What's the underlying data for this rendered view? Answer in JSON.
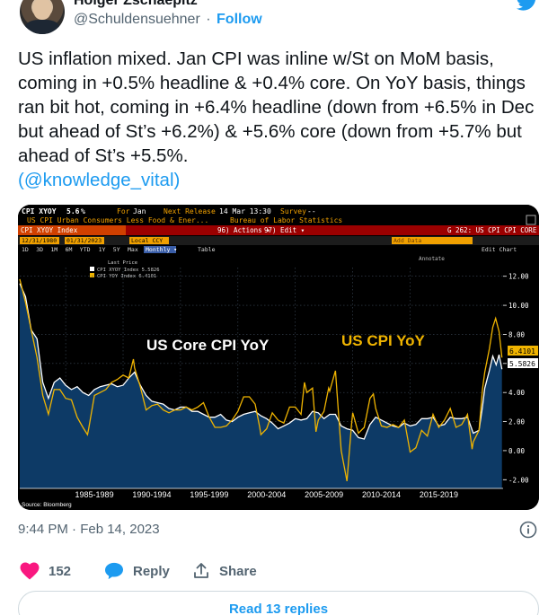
{
  "author": {
    "display_name": "Holger Zschaepitz",
    "handle": "@Schuldensuehner",
    "separator": "·",
    "follow_label": "Follow"
  },
  "tweet": {
    "text_main": "US inflation mixed. Jan CPI was inline w/St on MoM basis, coming in +0.5% headline & +0.4% core. On YoY basis, things ran bit hot, coming in +6.4% headline (down from +6.5% in Dec but ahead of St’s +6.2%) & +5.6% core (down from +5.7% but ahead of St’s +5.5%.",
    "mention_open": "(",
    "mention": "@knowledge_vital",
    "mention_close": ")"
  },
  "terminal": {
    "ticker": "CPI XYOY",
    "ticker_value": "5.6",
    "ticker_dot": "%",
    "for_label": "For",
    "for_value": "Jan",
    "next_release_label": "Next Release",
    "next_release_value": "14 Mar 13:30",
    "survey_label": "Survey",
    "survey_value": "--",
    "series_desc": "US CPI Urban Consumers Less Food & Ener...",
    "source_desc": "Bureau of Labor Statistics",
    "index_name": "CPI XYOY Index",
    "actions_label": "96) Actions ▾",
    "edit_label": "97) Edit ▾",
    "page_code": "G 262: US CPI CPI CORE",
    "date_from": "12/31/1980",
    "date_to": "01/31/2023",
    "currency": "Local CCY",
    "periods": [
      "1D",
      "3D",
      "1M",
      "6M",
      "YTD",
      "1Y",
      "5Y",
      "Max"
    ],
    "frequency": "Monthly ▾",
    "table_label": "Table",
    "add_data": "Add Data",
    "annotate": "Annotate",
    "edit_chart": "Edit Chart",
    "legend_title": "Last Price",
    "legend_items": [
      {
        "label": "CPI XYOY Index 5.5826",
        "color": "#ffffff"
      },
      {
        "label": "CPI YOY Index 6.4101",
        "color": "#f0b400"
      }
    ],
    "source": "Source: Bloomberg"
  },
  "chart_data": {
    "type": "line",
    "title": "",
    "annotations": [
      "US Core CPI YoY",
      "US CPI YoY"
    ],
    "x_tick_labels": [
      "1985-1989",
      "1990-1994",
      "1995-1999",
      "2000-2004",
      "2005-2009",
      "2010-2014",
      "2015-2019"
    ],
    "y_tick_labels": [
      "12.00",
      "10.00",
      "8.00",
      "6.00",
      "4.00",
      "2.00",
      "0.00",
      "-2.00"
    ],
    "xlim": [
      1981,
      2023.1
    ],
    "ylim": [
      -2.6,
      12.6
    ],
    "last_values": {
      "core": "5.5826",
      "headline": "6.4101"
    },
    "series": [
      {
        "name": "CPI XYOY Index",
        "color": "#ffffff",
        "fill": "#0d3a66",
        "points": [
          [
            1981,
            11.5
          ],
          [
            1981.5,
            10.6
          ],
          [
            1982,
            8.3
          ],
          [
            1982.5,
            7.7
          ],
          [
            1983,
            4.7
          ],
          [
            1983.5,
            3.6
          ],
          [
            1984,
            4.7
          ],
          [
            1984.5,
            5.0
          ],
          [
            1985,
            4.5
          ],
          [
            1985.5,
            4.2
          ],
          [
            1986,
            4.4
          ],
          [
            1986.5,
            4.0
          ],
          [
            1987,
            3.8
          ],
          [
            1987.5,
            4.2
          ],
          [
            1988,
            4.4
          ],
          [
            1988.5,
            4.5
          ],
          [
            1989,
            4.6
          ],
          [
            1989.5,
            4.4
          ],
          [
            1990,
            4.5
          ],
          [
            1990.5,
            5.0
          ],
          [
            1991,
            5.4
          ],
          [
            1991.5,
            4.5
          ],
          [
            1992,
            3.8
          ],
          [
            1992.5,
            3.4
          ],
          [
            1993,
            3.3
          ],
          [
            1993.5,
            3.2
          ],
          [
            1994,
            2.9
          ],
          [
            1994.5,
            2.8
          ],
          [
            1995,
            3.0
          ],
          [
            1995.5,
            3.0
          ],
          [
            1996,
            2.7
          ],
          [
            1996.5,
            2.7
          ],
          [
            1997,
            2.5
          ],
          [
            1997.5,
            2.3
          ],
          [
            1998,
            2.3
          ],
          [
            1998.5,
            2.5
          ],
          [
            1999,
            2.1
          ],
          [
            1999.5,
            2.0
          ],
          [
            2000,
            2.3
          ],
          [
            2000.5,
            2.5
          ],
          [
            2001,
            2.6
          ],
          [
            2001.5,
            2.7
          ],
          [
            2002,
            2.4
          ],
          [
            2002.5,
            2.2
          ],
          [
            2003,
            1.9
          ],
          [
            2003.5,
            1.5
          ],
          [
            2004,
            1.7
          ],
          [
            2004.5,
            1.9
          ],
          [
            2005,
            2.2
          ],
          [
            2005.5,
            2.1
          ],
          [
            2006,
            2.2
          ],
          [
            2006.5,
            2.7
          ],
          [
            2007,
            2.6
          ],
          [
            2007.5,
            2.2
          ],
          [
            2008,
            2.5
          ],
          [
            2008.5,
            2.5
          ],
          [
            2009,
            1.7
          ],
          [
            2009.5,
            1.5
          ],
          [
            2010,
            1.4
          ],
          [
            2010.5,
            0.9
          ],
          [
            2011,
            0.8
          ],
          [
            2011.5,
            1.8
          ],
          [
            2012,
            2.3
          ],
          [
            2012.5,
            2.1
          ],
          [
            2013,
            1.9
          ],
          [
            2013.5,
            1.7
          ],
          [
            2014,
            1.6
          ],
          [
            2014.5,
            1.9
          ],
          [
            2015,
            1.7
          ],
          [
            2015.5,
            1.8
          ],
          [
            2016,
            2.2
          ],
          [
            2016.5,
            2.2
          ],
          [
            2017,
            2.3
          ],
          [
            2017.5,
            1.7
          ],
          [
            2018,
            1.8
          ],
          [
            2018.5,
            2.3
          ],
          [
            2019,
            2.2
          ],
          [
            2019.5,
            2.2
          ],
          [
            2020,
            2.3
          ],
          [
            2020.5,
            1.2
          ],
          [
            2021,
            1.4
          ],
          [
            2021.3,
            3.0
          ],
          [
            2021.5,
            4.3
          ],
          [
            2021.9,
            5.5
          ],
          [
            2022.2,
            6.5
          ],
          [
            2022.5,
            5.9
          ],
          [
            2022.75,
            6.6
          ],
          [
            2023,
            5.6
          ]
        ]
      },
      {
        "name": "CPI YOY Index",
        "color": "#f0b400",
        "points": [
          [
            1981,
            11.8
          ],
          [
            1981.5,
            10.2
          ],
          [
            1982,
            8.3
          ],
          [
            1982.5,
            6.4
          ],
          [
            1983,
            3.8
          ],
          [
            1983.5,
            2.5
          ],
          [
            1984,
            4.2
          ],
          [
            1984.5,
            4.2
          ],
          [
            1985,
            3.6
          ],
          [
            1985.5,
            3.5
          ],
          [
            1986,
            2.3
          ],
          [
            1986.5,
            1.6
          ],
          [
            1986.9,
            1.1
          ],
          [
            1987,
            1.5
          ],
          [
            1987.5,
            3.8
          ],
          [
            1988,
            4.0
          ],
          [
            1988.5,
            4.2
          ],
          [
            1989,
            4.7
          ],
          [
            1989.5,
            4.9
          ],
          [
            1990,
            5.2
          ],
          [
            1990.5,
            5.0
          ],
          [
            1990.9,
            6.3
          ],
          [
            1991,
            5.7
          ],
          [
            1991.5,
            4.4
          ],
          [
            1992,
            2.8
          ],
          [
            1992.5,
            3.1
          ],
          [
            1993,
            3.2
          ],
          [
            1993.5,
            2.8
          ],
          [
            1994,
            2.6
          ],
          [
            1994.5,
            2.8
          ],
          [
            1995,
            2.8
          ],
          [
            1995.5,
            3.0
          ],
          [
            1996,
            2.8
          ],
          [
            1996.5,
            3.0
          ],
          [
            1997,
            3.3
          ],
          [
            1997.5,
            2.3
          ],
          [
            1998,
            1.6
          ],
          [
            1998.5,
            1.6
          ],
          [
            1999,
            1.7
          ],
          [
            1999.5,
            2.1
          ],
          [
            2000,
            2.7
          ],
          [
            2000.5,
            3.7
          ],
          [
            2001,
            3.7
          ],
          [
            2001.5,
            3.2
          ],
          [
            2001.9,
            1.6
          ],
          [
            2002,
            1.1
          ],
          [
            2002.5,
            1.5
          ],
          [
            2003,
            2.6
          ],
          [
            2003.5,
            2.1
          ],
          [
            2004,
            1.9
          ],
          [
            2004.5,
            3.0
          ],
          [
            2005,
            3.0
          ],
          [
            2005.5,
            2.5
          ],
          [
            2005.8,
            4.7
          ],
          [
            2006,
            4.0
          ],
          [
            2006.5,
            4.3
          ],
          [
            2006.8,
            1.3
          ],
          [
            2007,
            2.1
          ],
          [
            2007.5,
            2.7
          ],
          [
            2007.9,
            4.3
          ],
          [
            2008,
            4.1
          ],
          [
            2008.5,
            5.5
          ],
          [
            2008.9,
            1.1
          ],
          [
            2009,
            0.0
          ],
          [
            2009.5,
            -2.1
          ],
          [
            2009.9,
            1.8
          ],
          [
            2010,
            2.6
          ],
          [
            2010.5,
            1.2
          ],
          [
            2011,
            1.6
          ],
          [
            2011.5,
            3.6
          ],
          [
            2011.8,
            3.9
          ],
          [
            2012,
            2.9
          ],
          [
            2012.5,
            1.7
          ],
          [
            2013,
            1.6
          ],
          [
            2013.5,
            1.8
          ],
          [
            2014,
            1.6
          ],
          [
            2014.5,
            2.1
          ],
          [
            2015,
            -0.1
          ],
          [
            2015.5,
            0.2
          ],
          [
            2016,
            1.4
          ],
          [
            2016.5,
            1.0
          ],
          [
            2017,
            2.5
          ],
          [
            2017.5,
            1.6
          ],
          [
            2018,
            2.1
          ],
          [
            2018.5,
            2.9
          ],
          [
            2019,
            1.6
          ],
          [
            2019.5,
            1.8
          ],
          [
            2020,
            2.5
          ],
          [
            2020.4,
            0.1
          ],
          [
            2020.5,
            0.6
          ],
          [
            2021,
            1.4
          ],
          [
            2021.3,
            4.2
          ],
          [
            2021.5,
            5.4
          ],
          [
            2021.9,
            7.0
          ],
          [
            2022.2,
            8.5
          ],
          [
            2022.45,
            9.1
          ],
          [
            2022.75,
            8.2
          ],
          [
            2023,
            6.4
          ]
        ]
      }
    ]
  },
  "footer": {
    "timestamp": "9:44 PM · Feb 14, 2023",
    "likes": "152",
    "reply_label": "Reply",
    "share_label": "Share",
    "read_replies": "Read 13 replies"
  },
  "colors": {
    "accent": "#1d9bf0",
    "like": "#f91880",
    "secondary_text": "#536471"
  }
}
